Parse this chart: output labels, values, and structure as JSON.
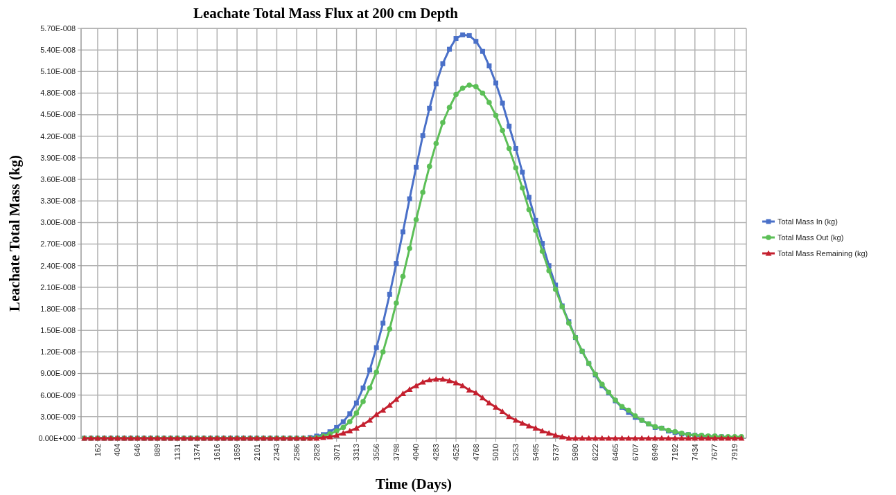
{
  "chart_data": {
    "type": "line",
    "title": "Leachate Total Mass Flux at 200 cm Depth",
    "xlabel": "Time (Days)",
    "ylabel": "Leachate Total Mass (kg)",
    "x": [
      0,
      81,
      162,
      242,
      323,
      404,
      485,
      566,
      646,
      727,
      808,
      889,
      970,
      1051,
      1131,
      1212,
      1293,
      1374,
      1455,
      1535,
      1616,
      1697,
      1778,
      1859,
      1939,
      2020,
      2101,
      2182,
      2263,
      2343,
      2424,
      2505,
      2586,
      2667,
      2748,
      2828,
      2909,
      2990,
      3071,
      3152,
      3232,
      3313,
      3394,
      3475,
      3556,
      3636,
      3717,
      3798,
      3879,
      3960,
      4040,
      4121,
      4202,
      4283,
      4364,
      4445,
      4525,
      4606,
      4687,
      4768,
      4849,
      4929,
      5010,
      5091,
      5172,
      5253,
      5333,
      5414,
      5495,
      5576,
      5657,
      5737,
      5818,
      5899,
      5980,
      6061,
      6142,
      6222,
      6303,
      6384,
      6465,
      6546,
      6626,
      6707,
      6788,
      6869,
      6949,
      7030,
      7111,
      7192,
      7273,
      7354,
      7434,
      7515,
      7596,
      7677,
      7758,
      7838,
      7919,
      8000
    ],
    "xlim": [
      -40,
      8060
    ],
    "xticks": [
      162,
      404,
      646,
      889,
      1131,
      1374,
      1616,
      1859,
      2101,
      2343,
      2586,
      2828,
      3071,
      3313,
      3556,
      3798,
      4040,
      4283,
      4525,
      4768,
      5010,
      5253,
      5495,
      5737,
      5980,
      6222,
      6465,
      6707,
      6949,
      7192,
      7434,
      7677,
      7919
    ],
    "ylim": [
      0,
      5.7e-08
    ],
    "yticks": [
      {
        "value": 0,
        "label": "0.00E+000"
      },
      {
        "value": 3e-09,
        "label": "3.00E-009"
      },
      {
        "value": 6e-09,
        "label": "6.00E-009"
      },
      {
        "value": 9e-09,
        "label": "9.00E-009"
      },
      {
        "value": 1.2e-08,
        "label": "1.20E-008"
      },
      {
        "value": 1.5e-08,
        "label": "1.50E-008"
      },
      {
        "value": 1.8e-08,
        "label": "1.80E-008"
      },
      {
        "value": 2.1e-08,
        "label": "2.10E-008"
      },
      {
        "value": 2.4e-08,
        "label": "2.40E-008"
      },
      {
        "value": 2.7e-08,
        "label": "2.70E-008"
      },
      {
        "value": 3e-08,
        "label": "3.00E-008"
      },
      {
        "value": 3.3e-08,
        "label": "3.30E-008"
      },
      {
        "value": 3.6e-08,
        "label": "3.60E-008"
      },
      {
        "value": 3.9e-08,
        "label": "3.90E-008"
      },
      {
        "value": 4.2e-08,
        "label": "4.20E-008"
      },
      {
        "value": 4.5e-08,
        "label": "4.50E-008"
      },
      {
        "value": 4.8e-08,
        "label": "4.80E-008"
      },
      {
        "value": 5.1e-08,
        "label": "5.10E-008"
      },
      {
        "value": 5.4e-08,
        "label": "5.40E-008"
      },
      {
        "value": 5.7e-08,
        "label": "5.70E-008"
      }
    ],
    "grid": true,
    "legend": "right",
    "series": [
      {
        "name": "Total Mass In (kg)",
        "color": "#4a70c8",
        "marker": "square",
        "values": [
          0,
          0,
          0,
          0,
          0,
          0,
          0,
          0,
          0,
          0,
          0,
          0,
          0,
          0,
          0,
          0,
          0,
          0,
          0,
          0,
          0,
          0,
          0,
          0,
          0,
          0,
          0,
          0,
          0,
          0,
          0,
          0,
          0,
          0,
          1e-10,
          3e-10,
          5e-10,
          9e-10,
          1.5e-09,
          2.3e-09,
          3.4e-09,
          4.9e-09,
          7e-09,
          9.5e-09,
          1.26e-08,
          1.6e-08,
          2e-08,
          2.43e-08,
          2.87e-08,
          3.33e-08,
          3.77e-08,
          4.21e-08,
          4.59e-08,
          4.93e-08,
          5.21e-08,
          5.41e-08,
          5.56e-08,
          5.61e-08,
          5.6e-08,
          5.52e-08,
          5.38e-08,
          5.18e-08,
          4.94e-08,
          4.66e-08,
          4.34e-08,
          4.03e-08,
          3.7e-08,
          3.35e-08,
          3.03e-08,
          2.71e-08,
          2.4e-08,
          2.13e-08,
          1.84e-08,
          1.62e-08,
          1.4e-08,
          1.21e-08,
          1.04e-08,
          8.8e-09,
          7.3e-09,
          6.3e-09,
          5.2e-09,
          4.3e-09,
          3.6e-09,
          2.9e-09,
          2.5e-09,
          2e-09,
          1.5e-09,
          1.4e-09,
          1e-09,
          8e-10,
          6e-10,
          5e-10,
          4e-10,
          3e-10,
          2e-10,
          2e-10,
          2e-10,
          1e-10,
          null,
          null
        ]
      },
      {
        "name": "Total Mass Out (kg)",
        "color": "#5cbf57",
        "marker": "circle",
        "values": [
          0,
          0,
          0,
          0,
          0,
          0,
          0,
          0,
          0,
          0,
          0,
          0,
          0,
          0,
          0,
          0,
          0,
          0,
          0,
          0,
          0,
          0,
          0,
          0,
          0,
          0,
          0,
          0,
          0,
          0,
          0,
          0,
          0,
          0,
          0,
          1e-10,
          3e-10,
          6e-10,
          1e-09,
          1.5e-09,
          2.3e-09,
          3.5e-09,
          5.1e-09,
          7e-09,
          9.2e-09,
          1.2e-08,
          1.52e-08,
          1.88e-08,
          2.25e-08,
          2.64e-08,
          3.04e-08,
          3.42e-08,
          3.78e-08,
          4.1e-08,
          4.39e-08,
          4.6e-08,
          4.78e-08,
          4.87e-08,
          4.91e-08,
          4.89e-08,
          4.8e-08,
          4.67e-08,
          4.49e-08,
          4.28e-08,
          4.03e-08,
          3.76e-08,
          3.48e-08,
          3.18e-08,
          2.89e-08,
          2.6e-08,
          2.33e-08,
          2.07e-08,
          1.83e-08,
          1.6e-08,
          1.4e-08,
          1.21e-08,
          1.04e-08,
          8.9e-09,
          7.5e-09,
          6.4e-09,
          5.3e-09,
          4.4e-09,
          3.9e-09,
          3.1e-09,
          2.5e-09,
          2e-09,
          1.6e-09,
          1.4e-09,
          1.1e-09,
          9e-10,
          7e-10,
          5e-10,
          4e-10,
          4e-10,
          3e-10,
          3e-10,
          2e-10,
          2e-10,
          2e-10,
          2e-10
        ]
      },
      {
        "name": "Total Mass Remaining (kg)",
        "color": "#c4202f",
        "marker": "triangle",
        "values": [
          0,
          0,
          0,
          0,
          0,
          0,
          0,
          0,
          0,
          0,
          0,
          0,
          0,
          0,
          0,
          0,
          0,
          0,
          0,
          0,
          0,
          0,
          0,
          0,
          0,
          0,
          0,
          0,
          0,
          0,
          0,
          0,
          0,
          0,
          0,
          0,
          1e-10,
          2e-10,
          4e-10,
          7e-10,
          1e-09,
          1.4e-09,
          1.9e-09,
          2.5e-09,
          3.3e-09,
          3.9e-09,
          4.6e-09,
          5.4e-09,
          6.2e-09,
          6.8e-09,
          7.3e-09,
          7.8e-09,
          8.1e-09,
          8.2e-09,
          8.2e-09,
          8e-09,
          7.7e-09,
          7.3e-09,
          6.7e-09,
          6.3e-09,
          5.6e-09,
          4.9e-09,
          4.3e-09,
          3.7e-09,
          3e-09,
          2.5e-09,
          2.1e-09,
          1.7e-09,
          1.4e-09,
          1e-09,
          7e-10,
          4e-10,
          2e-10,
          0,
          0,
          0,
          0,
          0,
          0,
          0,
          0,
          0,
          0,
          0,
          0,
          0,
          0,
          0,
          0,
          0,
          0,
          0,
          0,
          0,
          0,
          0,
          0,
          0,
          0,
          0
        ]
      }
    ]
  }
}
